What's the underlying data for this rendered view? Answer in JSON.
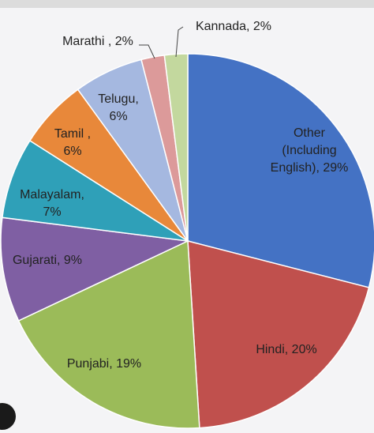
{
  "chart_data": {
    "type": "pie",
    "start_angle_deg": 0,
    "direction": "clockwise",
    "slices": [
      {
        "label": "Other (Including English)",
        "lines": [
          "Other",
          "(Including",
          "English), 29%"
        ],
        "value": 29,
        "color": "#4472c4"
      },
      {
        "label": "Hindi",
        "lines": [
          "Hindi, 20%"
        ],
        "value": 20,
        "color": "#c0504d"
      },
      {
        "label": "Punjabi",
        "lines": [
          "Punjabi, 19%"
        ],
        "value": 19,
        "color": "#9bbb59"
      },
      {
        "label": "Gujarati",
        "lines": [
          "Gujarati, 9%"
        ],
        "value": 9,
        "color": "#7f5fa3"
      },
      {
        "label": "Malayalam",
        "lines": [
          "Malayalam,",
          "7%"
        ],
        "value": 7,
        "color": "#2fa0b8"
      },
      {
        "label": "Tamil",
        "lines": [
          "Tamil ,",
          "6%"
        ],
        "value": 6,
        "color": "#e8883a"
      },
      {
        "label": "Telugu",
        "lines": [
          "Telugu,",
          "6%"
        ],
        "value": 6,
        "color": "#a5b8e0"
      },
      {
        "label": "Marathi",
        "lines": [
          "Marathi , 2%"
        ],
        "value": 2,
        "color": "#dc9a9a"
      },
      {
        "label": "Kannada",
        "lines": [
          "Kannada, 2%"
        ],
        "value": 2,
        "color": "#c3d89e"
      }
    ],
    "legend": "none"
  }
}
